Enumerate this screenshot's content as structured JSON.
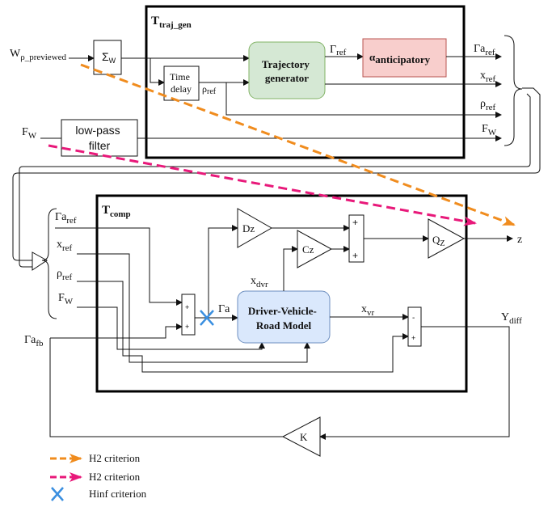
{
  "frames": {
    "traj_gen": {
      "main": "T",
      "sub": "traj_gen"
    },
    "comp": {
      "main": "T",
      "sub": "comp"
    }
  },
  "inputs": {
    "w_previewed": {
      "main": "W",
      "sub": "ρ_previewed"
    },
    "f_w": {
      "main": "F",
      "sub": "W"
    }
  },
  "blocks": {
    "sigma_w": {
      "main": "Σ",
      "sub": "W"
    },
    "time_delay": [
      "Time",
      "delay"
    ],
    "low_pass": [
      "low-pass",
      "filter"
    ],
    "trajectory_generator": [
      "Trajectory",
      "generator"
    ],
    "anticipatory": {
      "main": "α",
      "sub": "anticipatory"
    },
    "dz": "Dz",
    "cz": "Cz",
    "qz": {
      "main": "Q",
      "sub": "Z"
    },
    "dvr_model": [
      "Driver-Vehicle-",
      "Road Model"
    ],
    "k": "K"
  },
  "signals": {
    "gamma_ref": {
      "main": "Γ",
      "sub": "ref"
    },
    "rho_ref_inner": {
      "main": "ρ",
      "sub": "ref"
    },
    "out_gamma_a_ref": {
      "main": "Γa",
      "sub": "ref"
    },
    "out_x_ref": {
      "main": "x",
      "sub": "ref"
    },
    "out_rho_ref": {
      "main": "ρ",
      "sub": "ref"
    },
    "out_f_w": {
      "main": "F",
      "sub": "W"
    },
    "in_gamma_a_ref": {
      "main": "Γa",
      "sub": "ref"
    },
    "in_x_ref": {
      "main": "x",
      "sub": "ref"
    },
    "in_rho_ref": {
      "main": "ρ",
      "sub": "ref"
    },
    "in_f_w": {
      "main": "F",
      "sub": "W"
    },
    "gamma_a": "Γa",
    "gamma_a_fb": {
      "main": "Γa",
      "sub": "fb"
    },
    "x_dvr": {
      "main": "x",
      "sub": "dvr"
    },
    "x_vr": {
      "main": "x",
      "sub": "vr"
    },
    "y_diff": {
      "main": "Y",
      "sub": "diff"
    },
    "z_out": "z",
    "z_criterion": "z"
  },
  "sum_signs": {
    "plus": "+",
    "minus": "-"
  },
  "legend": [
    {
      "label": "H2 criterion",
      "color": "#f08c1e",
      "kind": "arrow"
    },
    {
      "label": "H2 criterion",
      "color": "#e8197a",
      "kind": "arrow"
    },
    {
      "label": "Hinf criterion",
      "color": "#3a8fe0",
      "kind": "cross"
    }
  ],
  "colors": {
    "trajectory_generator_fill": "#d5e8d4",
    "trajectory_generator_stroke": "#82b366",
    "anticipatory_fill": "#f8cecc",
    "anticipatory_stroke": "#b85450",
    "dvr_fill": "#dae8fc",
    "dvr_stroke": "#6c8ebf",
    "h2_orange": "#f08c1e",
    "h2_magenta": "#e8197a",
    "hinf_blue": "#3a8fe0"
  }
}
